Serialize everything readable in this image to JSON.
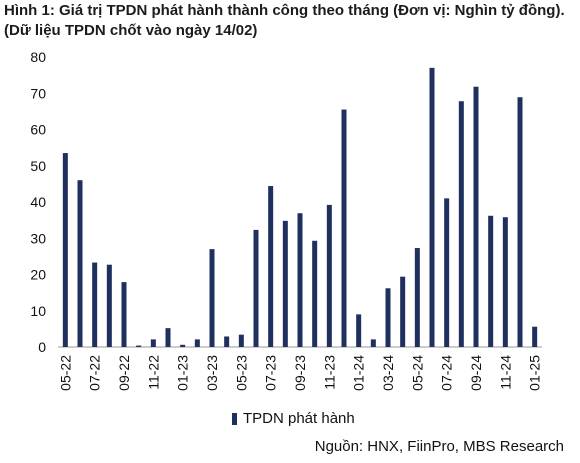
{
  "title": "Hình 1: Giá trị TPDN phát hành thành công theo tháng (Đơn vị: Nghìn tỷ đồng). (Dữ liệu TPDN chốt vào ngày 14/02)",
  "source": "Nguồn: HNX, FiinPro, MBS Research",
  "colors": {
    "bar": "#1f2f5e"
  },
  "chart_data": {
    "type": "bar",
    "categories": [
      "05-22",
      "06-22",
      "07-22",
      "08-22",
      "09-22",
      "10-22",
      "11-22",
      "12-22",
      "01-23",
      "02-23",
      "03-23",
      "04-23",
      "05-23",
      "06-23",
      "07-23",
      "08-23",
      "09-23",
      "10-23",
      "11-23",
      "12-23",
      "01-24",
      "02-24",
      "03-24",
      "04-24",
      "05-24",
      "06-24",
      "07-24",
      "08-24",
      "09-24",
      "10-24",
      "11-24",
      "12-24",
      "01-25"
    ],
    "tick_labels": [
      "05-22",
      "07-22",
      "09-22",
      "11-22",
      "01-23",
      "03-23",
      "05-23",
      "07-23",
      "09-23",
      "11-23",
      "01-24",
      "03-24",
      "05-24",
      "07-24",
      "09-24",
      "11-24",
      "01-25"
    ],
    "series": [
      {
        "name": "TPDN phát hành",
        "values": [
          53.5,
          46,
          23.3,
          22.7,
          17.9,
          0.4,
          2.1,
          5.2,
          0.6,
          2.1,
          27,
          2.9,
          3.4,
          32.3,
          44.4,
          34.8,
          36.9,
          29.3,
          39.2,
          65.5,
          9,
          2.1,
          16.2,
          19.4,
          27.3,
          77,
          41,
          67.8,
          71.8,
          36.2,
          35.8,
          68.9,
          5.6
        ]
      }
    ],
    "ylim": [
      0,
      80
    ],
    "yticks": [
      0,
      10,
      20,
      30,
      40,
      50,
      60,
      70,
      80
    ],
    "grid": false,
    "legend_position": "bottom"
  }
}
